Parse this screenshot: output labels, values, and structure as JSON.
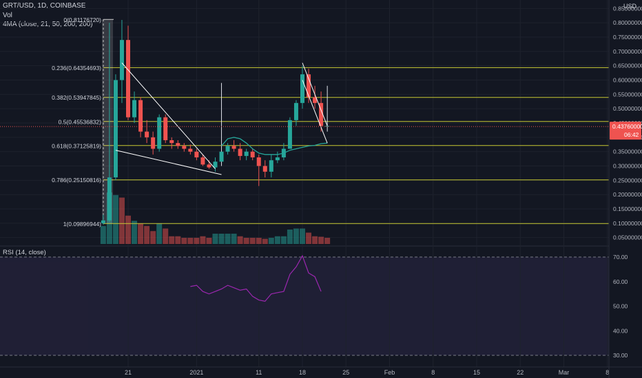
{
  "header": {
    "symbol_line": "GRT/USD, 1D, COINBASE",
    "vol_label": "Vol",
    "ma_label": "4MA (close, 21, 50, 200, 200)",
    "currency": "USD"
  },
  "price_axis": {
    "ticks": [
      {
        "v": 0.85,
        "label": "0.85000000"
      },
      {
        "v": 0.8,
        "label": "0.80000000"
      },
      {
        "v": 0.75,
        "label": "0.75000000"
      },
      {
        "v": 0.7,
        "label": "0.70000000"
      },
      {
        "v": 0.65,
        "label": "0.65000000"
      },
      {
        "v": 0.6,
        "label": "0.60000000"
      },
      {
        "v": 0.55,
        "label": "0.55000000"
      },
      {
        "v": 0.5,
        "label": "0.50000000"
      },
      {
        "v": 0.45,
        "label": "0.45000000"
      },
      {
        "v": 0.4,
        "label": "0.40000000"
      },
      {
        "v": 0.35,
        "label": "0.35000000"
      },
      {
        "v": 0.3,
        "label": "0.30000000"
      },
      {
        "v": 0.25,
        "label": "0.25000000"
      },
      {
        "v": 0.2,
        "label": "0.20000000"
      },
      {
        "v": 0.15,
        "label": "0.15000000"
      },
      {
        "v": 0.1,
        "label": "0.10000000"
      },
      {
        "v": 0.05,
        "label": "0.05000000"
      }
    ],
    "last_price": {
      "v": 0.4376,
      "label": "0.43760000",
      "countdown": "06:42",
      "color": "#ef5350"
    }
  },
  "time_axis": {
    "ticks": [
      {
        "day": 21,
        "label": "21"
      },
      {
        "day": 32,
        "label": "2021"
      },
      {
        "day": 42,
        "label": "11"
      },
      {
        "day": 49,
        "label": "18"
      },
      {
        "day": 56,
        "label": "25"
      },
      {
        "day": 63,
        "label": "Feb"
      },
      {
        "day": 70,
        "label": "8"
      },
      {
        "day": 77,
        "label": "15"
      },
      {
        "day": 84,
        "label": "22"
      },
      {
        "day": 91,
        "label": "Mar"
      },
      {
        "day": 98,
        "label": "8"
      }
    ]
  },
  "fib_levels": [
    {
      "label": "0(0.81176720)",
      "v": 0.8117672
    },
    {
      "label": "0.236(0.64354693)",
      "v": 0.64354693
    },
    {
      "label": "0.382(0.53947845)",
      "v": 0.53947845
    },
    {
      "label": "0.5(0.45536832)",
      "v": 0.45536832
    },
    {
      "label": "0.618(0.37125819)",
      "v": 0.37125819
    },
    {
      "label": "0.786(0.25150816)",
      "v": 0.25150816
    },
    {
      "label": "1(0.09896944)",
      "v": 0.09896944
    }
  ],
  "rsi_panel": {
    "label": "RSI (14, close)",
    "ticks": [
      {
        "v": 70,
        "label": "70.00"
      },
      {
        "v": 60,
        "label": "60.00"
      },
      {
        "v": 50,
        "label": "50.00"
      },
      {
        "v": 40,
        "label": "40.00"
      },
      {
        "v": 30,
        "label": "30.00"
      }
    ],
    "band": [
      30,
      70
    ]
  },
  "colors": {
    "up": "#26a69a",
    "down": "#ef5350",
    "fib": "#c8c832",
    "ma": "#26a69a",
    "rsi": "#9c27b0",
    "wick_up": "#26a69a"
  },
  "chart_data": {
    "type": "candlestick",
    "x_unit": "day offset, Dec 2020 = day of month; 2021-01-01 = 32",
    "candles": [
      {
        "day": 17,
        "o": 0.1,
        "h": 0.13,
        "l": 0.095,
        "c": 0.11
      },
      {
        "day": 18,
        "o": 0.11,
        "h": 0.8,
        "l": 0.105,
        "c": 0.26
      },
      {
        "day": 19,
        "o": 0.26,
        "h": 0.62,
        "l": 0.25,
        "c": 0.6
      },
      {
        "day": 20,
        "o": 0.6,
        "h": 0.81,
        "l": 0.52,
        "c": 0.74
      },
      {
        "day": 21,
        "o": 0.74,
        "h": 0.79,
        "l": 0.46,
        "c": 0.47
      },
      {
        "day": 22,
        "o": 0.47,
        "h": 0.56,
        "l": 0.45,
        "c": 0.53
      },
      {
        "day": 23,
        "o": 0.53,
        "h": 0.54,
        "l": 0.4,
        "c": 0.42
      },
      {
        "day": 24,
        "o": 0.42,
        "h": 0.46,
        "l": 0.38,
        "c": 0.4
      },
      {
        "day": 25,
        "o": 0.4,
        "h": 0.42,
        "l": 0.34,
        "c": 0.36
      },
      {
        "day": 26,
        "o": 0.36,
        "h": 0.48,
        "l": 0.35,
        "c": 0.47
      },
      {
        "day": 27,
        "o": 0.47,
        "h": 0.48,
        "l": 0.38,
        "c": 0.39
      },
      {
        "day": 28,
        "o": 0.39,
        "h": 0.4,
        "l": 0.36,
        "c": 0.38
      },
      {
        "day": 29,
        "o": 0.38,
        "h": 0.39,
        "l": 0.36,
        "c": 0.37
      },
      {
        "day": 30,
        "o": 0.37,
        "h": 0.38,
        "l": 0.35,
        "c": 0.36
      },
      {
        "day": 31,
        "o": 0.36,
        "h": 0.375,
        "l": 0.34,
        "c": 0.35
      },
      {
        "day": 32,
        "o": 0.35,
        "h": 0.36,
        "l": 0.32,
        "c": 0.33
      },
      {
        "day": 33,
        "o": 0.33,
        "h": 0.34,
        "l": 0.3,
        "c": 0.305
      },
      {
        "day": 34,
        "o": 0.305,
        "h": 0.32,
        "l": 0.29,
        "c": 0.295
      },
      {
        "day": 35,
        "o": 0.295,
        "h": 0.33,
        "l": 0.28,
        "c": 0.315
      },
      {
        "day": 36,
        "o": 0.315,
        "h": 0.59,
        "l": 0.3,
        "c": 0.35
      },
      {
        "day": 37,
        "o": 0.35,
        "h": 0.38,
        "l": 0.34,
        "c": 0.37
      },
      {
        "day": 38,
        "o": 0.37,
        "h": 0.39,
        "l": 0.35,
        "c": 0.36
      },
      {
        "day": 39,
        "o": 0.36,
        "h": 0.38,
        "l": 0.32,
        "c": 0.335
      },
      {
        "day": 40,
        "o": 0.335,
        "h": 0.36,
        "l": 0.32,
        "c": 0.35
      },
      {
        "day": 41,
        "o": 0.35,
        "h": 0.36,
        "l": 0.32,
        "c": 0.33
      },
      {
        "day": 42,
        "o": 0.33,
        "h": 0.34,
        "l": 0.23,
        "c": 0.3
      },
      {
        "day": 43,
        "o": 0.3,
        "h": 0.32,
        "l": 0.26,
        "c": 0.28
      },
      {
        "day": 44,
        "o": 0.28,
        "h": 0.34,
        "l": 0.26,
        "c": 0.32
      },
      {
        "day": 45,
        "o": 0.32,
        "h": 0.35,
        "l": 0.31,
        "c": 0.33
      },
      {
        "day": 46,
        "o": 0.33,
        "h": 0.38,
        "l": 0.32,
        "c": 0.36
      },
      {
        "day": 47,
        "o": 0.36,
        "h": 0.47,
        "l": 0.36,
        "c": 0.46
      },
      {
        "day": 48,
        "o": 0.46,
        "h": 0.53,
        "l": 0.44,
        "c": 0.52
      },
      {
        "day": 49,
        "o": 0.52,
        "h": 0.65,
        "l": 0.5,
        "c": 0.62
      },
      {
        "day": 50,
        "o": 0.62,
        "h": 0.64,
        "l": 0.52,
        "c": 0.54
      },
      {
        "day": 51,
        "o": 0.54,
        "h": 0.58,
        "l": 0.5,
        "c": 0.52
      },
      {
        "day": 52,
        "o": 0.52,
        "h": 0.56,
        "l": 0.42,
        "c": 0.44
      },
      {
        "day": 53,
        "o": 0.44,
        "h": 0.58,
        "l": 0.42,
        "c": 0.44
      }
    ],
    "volumes": [
      {
        "day": 17,
        "v": 0.35,
        "up": true
      },
      {
        "day": 18,
        "v": 1.0,
        "up": true
      },
      {
        "day": 19,
        "v": 0.95,
        "up": true
      },
      {
        "day": 20,
        "v": 0.9,
        "up": false
      },
      {
        "day": 21,
        "v": 0.55,
        "up": false
      },
      {
        "day": 22,
        "v": 0.45,
        "up": true
      },
      {
        "day": 23,
        "v": 0.4,
        "up": false
      },
      {
        "day": 24,
        "v": 0.35,
        "up": false
      },
      {
        "day": 25,
        "v": 0.25,
        "up": false
      },
      {
        "day": 26,
        "v": 0.4,
        "up": true
      },
      {
        "day": 27,
        "v": 0.3,
        "up": false
      },
      {
        "day": 28,
        "v": 0.15,
        "up": false
      },
      {
        "day": 29,
        "v": 0.15,
        "up": false
      },
      {
        "day": 30,
        "v": 0.12,
        "up": false
      },
      {
        "day": 31,
        "v": 0.12,
        "up": false
      },
      {
        "day": 32,
        "v": 0.12,
        "up": false
      },
      {
        "day": 33,
        "v": 0.15,
        "up": false
      },
      {
        "day": 34,
        "v": 0.12,
        "up": false
      },
      {
        "day": 35,
        "v": 0.2,
        "up": true
      },
      {
        "day": 36,
        "v": 0.2,
        "up": true
      },
      {
        "day": 37,
        "v": 0.2,
        "up": true
      },
      {
        "day": 38,
        "v": 0.2,
        "up": true
      },
      {
        "day": 39,
        "v": 0.15,
        "up": false
      },
      {
        "day": 40,
        "v": 0.12,
        "up": false
      },
      {
        "day": 41,
        "v": 0.12,
        "up": false
      },
      {
        "day": 42,
        "v": 0.12,
        "up": false
      },
      {
        "day": 43,
        "v": 0.1,
        "up": false
      },
      {
        "day": 44,
        "v": 0.12,
        "up": true
      },
      {
        "day": 45,
        "v": 0.15,
        "up": true
      },
      {
        "day": 46,
        "v": 0.15,
        "up": true
      },
      {
        "day": 47,
        "v": 0.28,
        "up": true
      },
      {
        "day": 48,
        "v": 0.3,
        "up": true
      },
      {
        "day": 49,
        "v": 0.3,
        "up": true
      },
      {
        "day": 50,
        "v": 0.22,
        "up": false
      },
      {
        "day": 51,
        "v": 0.15,
        "up": false
      },
      {
        "day": 52,
        "v": 0.14,
        "up": false
      },
      {
        "day": 53,
        "v": 0.12,
        "up": false
      }
    ],
    "ma_series": [
      {
        "day": 36,
        "v": 0.37
      },
      {
        "day": 37,
        "v": 0.395
      },
      {
        "day": 38,
        "v": 0.4
      },
      {
        "day": 39,
        "v": 0.395
      },
      {
        "day": 40,
        "v": 0.38
      },
      {
        "day": 41,
        "v": 0.36
      },
      {
        "day": 42,
        "v": 0.345
      },
      {
        "day": 43,
        "v": 0.34
      },
      {
        "day": 44,
        "v": 0.34
      },
      {
        "day": 45,
        "v": 0.34
      },
      {
        "day": 46,
        "v": 0.345
      },
      {
        "day": 47,
        "v": 0.355
      },
      {
        "day": 48,
        "v": 0.36
      },
      {
        "day": 49,
        "v": 0.365
      },
      {
        "day": 50,
        "v": 0.37
      },
      {
        "day": 51,
        "v": 0.372
      },
      {
        "day": 52,
        "v": 0.378
      },
      {
        "day": 53,
        "v": 0.38
      }
    ],
    "rsi_series": [
      {
        "day": 31,
        "v": 58.0
      },
      {
        "day": 32,
        "v": 58.5
      },
      {
        "day": 33,
        "v": 56.0
      },
      {
        "day": 34,
        "v": 55.0
      },
      {
        "day": 35,
        "v": 56.0
      },
      {
        "day": 36,
        "v": 57.0
      },
      {
        "day": 37,
        "v": 58.5
      },
      {
        "day": 38,
        "v": 57.5
      },
      {
        "day": 39,
        "v": 56.5
      },
      {
        "day": 40,
        "v": 57.0
      },
      {
        "day": 41,
        "v": 54.0
      },
      {
        "day": 42,
        "v": 52.5
      },
      {
        "day": 43,
        "v": 52.0
      },
      {
        "day": 44,
        "v": 55.0
      },
      {
        "day": 45,
        "v": 55.5
      },
      {
        "day": 46,
        "v": 56.0
      },
      {
        "day": 47,
        "v": 63.0
      },
      {
        "day": 48,
        "v": 66.0
      },
      {
        "day": 49,
        "v": 70.5
      },
      {
        "day": 50,
        "v": 63.5
      },
      {
        "day": 51,
        "v": 62.0
      },
      {
        "day": 52,
        "v": 56.0
      }
    ],
    "trend_lines": [
      {
        "from": {
          "day": 20,
          "v": 0.66
        },
        "to": {
          "day": 35,
          "v": 0.29
        },
        "color": "#ffffff"
      },
      {
        "from": {
          "day": 19,
          "v": 0.355
        },
        "to": {
          "day": 36,
          "v": 0.27
        },
        "color": "#ffffff"
      },
      {
        "from": {
          "day": 49,
          "v": 0.66
        },
        "to": {
          "day": 53,
          "v": 0.44
        },
        "color": "#ffffff"
      },
      {
        "from": {
          "day": 49,
          "v": 0.6
        },
        "to": {
          "day": 53,
          "v": 0.38
        },
        "color": "#ffffff"
      }
    ],
    "y_range": [
      0.03,
      0.87
    ]
  }
}
